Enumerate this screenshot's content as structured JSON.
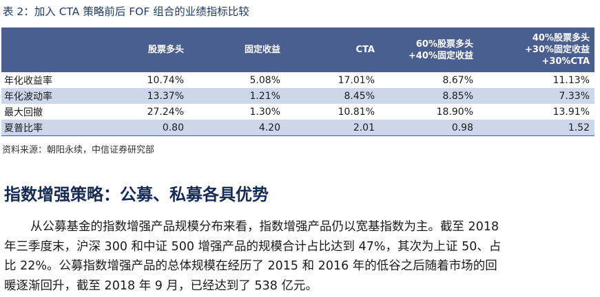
{
  "table_title": "表 2：加入 CTA 策略前后 FOF 组合的业绩指标比较",
  "table": {
    "columns": [
      "",
      "股票多头",
      "固定收益",
      "CTA",
      "60%股票多头\n+40%固定收益",
      "40%股票多头\n+30%固定收益\n+30%CTA"
    ],
    "rows": [
      {
        "label": "年化收益率",
        "values": [
          "10.74%",
          "5.08%",
          "17.01%",
          "8.67%",
          "11.13%"
        ]
      },
      {
        "label": "年化波动率",
        "values": [
          "13.37%",
          "1.21%",
          "8.45%",
          "8.85%",
          "7.33%"
        ]
      },
      {
        "label": "最大回撤",
        "values": [
          "27.24%",
          "1.30%",
          "10.81%",
          "18.90%",
          "13.91%"
        ]
      },
      {
        "label": "夏普比率",
        "values": [
          "0.80",
          "4.20",
          "2.01",
          "0.98",
          "1.52"
        ]
      }
    ],
    "colors": {
      "header_bg": "#4a5f8f",
      "shade_bg": "#cdd7ec"
    }
  },
  "source": "资料来源：朝阳永续，中信证券研究部",
  "section_title": "指数增强策略：公募、私募各具优势",
  "paragraph_lines": [
    "从公募基金的指数增强产品规模分布来看，指数增强产品仍以宽基指数为主。截至 2018",
    "年三季度末，沪深 300 和中证 500 增强产品的规模合计占比达到 47%，其次为上证 50、占",
    "比 22%。公募指数增强产品的总体规模在经历了 2015 和 2016 年的低谷之后随着市场的回",
    "暖逐渐回升，截至 2018 年 9 月，已经达到了 538 亿元。"
  ]
}
